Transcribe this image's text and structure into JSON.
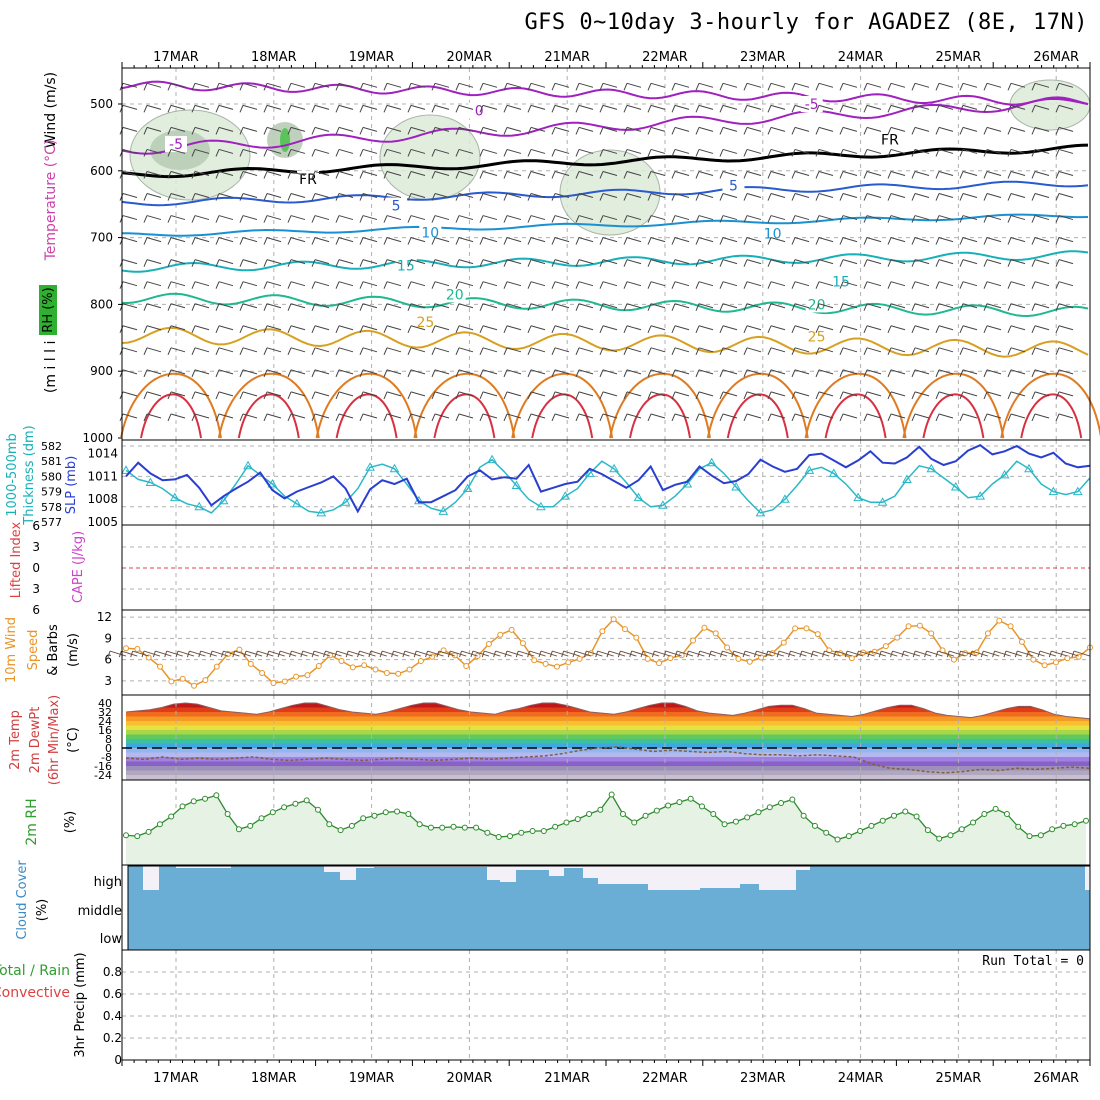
{
  "title": "GFS 0~10day 3-hourly for AGADEZ (8E, 17N)",
  "date_labels": [
    "17MAR",
    "18MAR",
    "19MAR",
    "20MAR",
    "21MAR",
    "22MAR",
    "23MAR",
    "24MAR",
    "25MAR",
    "26MAR"
  ],
  "colors": {
    "cloud": "#6aaed6",
    "cloud_clear": "#f4f0f8",
    "rh_fill": "#e6f2e4",
    "rh_line": "#2e8b2e",
    "wind_speed": "#e8952a",
    "slp": "#2a3fcf",
    "thickness": "#2ab8c8",
    "zero_line": "#e04040",
    "temp_line": "#8b6060"
  },
  "chart_data": [
    {
      "type": "contour",
      "panel": "upper-air",
      "yaxis_labels": [
        "(m i l l i b a r s)",
        "Wind (m/s)",
        "Temperature (°C)",
        "RH (%)"
      ],
      "y_ticks": [
        500,
        600,
        700,
        800,
        900,
        1000
      ],
      "ylim": [
        1000,
        450
      ],
      "isotherm_labels": [
        {
          "value": 0,
          "day": 3.1,
          "p": 510,
          "color": "#a020c0"
        },
        {
          "value": -5,
          "day": 6.5,
          "p": 500,
          "color": "#a020c0"
        },
        {
          "value": -5,
          "day": 0.0,
          "p": 560,
          "color": "#a020c0"
        },
        {
          "value": "FR",
          "day": 1.35,
          "p": 612,
          "color": "#000000"
        },
        {
          "value": "FR",
          "day": 7.3,
          "p": 553,
          "color": "#000000"
        },
        {
          "value": 5,
          "day": 2.25,
          "p": 652,
          "color": "#2a5ad0"
        },
        {
          "value": 5,
          "day": 5.7,
          "p": 622,
          "color": "#2a5ad0"
        },
        {
          "value": 10,
          "day": 2.6,
          "p": 692,
          "color": "#1a90d0"
        },
        {
          "value": 10,
          "day": 6.1,
          "p": 694,
          "color": "#1a90d0"
        },
        {
          "value": 15,
          "day": 2.35,
          "p": 742,
          "color": "#18b0b8"
        },
        {
          "value": 15,
          "day": 6.8,
          "p": 766,
          "color": "#18b0b8"
        },
        {
          "value": 20,
          "day": 2.85,
          "p": 785,
          "color": "#20b890"
        },
        {
          "value": 20,
          "day": 6.55,
          "p": 800,
          "color": "#20b890"
        },
        {
          "value": 25,
          "day": 2.55,
          "p": 826,
          "color": "#d8a020"
        },
        {
          "value": 25,
          "day": 6.55,
          "p": 848,
          "color": "#d8a020"
        }
      ]
    },
    {
      "type": "line",
      "panel": "thickness-slp",
      "yaxis_labels": [
        "1000-500mb",
        "Thickness (dm)",
        "SLP (mb)"
      ],
      "thickness_ticks": [
        577,
        578,
        579,
        580,
        581,
        582
      ],
      "slp_ticks": [
        1005,
        1008,
        1011,
        1014
      ],
      "series": [
        {
          "name": "Thickness",
          "axis": "thickness",
          "values": [
            580.4,
            579.8,
            579.6,
            579.2,
            578.6,
            578.2,
            578.0,
            577.6,
            578.4,
            579.5,
            580.7,
            580.1,
            579.5,
            578.7,
            578.2,
            577.7,
            577.6,
            577.8,
            578.3,
            579.2,
            580.6,
            580.8,
            580.5,
            579.5,
            578.4,
            577.9,
            577.7,
            578.3,
            579.2,
            580.6,
            581.1,
            580.3,
            579.4,
            578.5,
            578.0,
            578.0,
            578.7,
            579.2,
            580.2,
            581.0,
            580.5,
            579.6,
            578.6,
            578.0,
            578.1,
            578.7,
            579.5,
            580.5,
            580.9,
            580.2,
            579.3,
            578.4,
            577.6,
            577.8,
            578.5,
            579.4,
            580.4,
            580.6,
            580.2,
            579.5,
            578.6,
            578.3,
            578.3,
            578.7,
            579.8,
            580.7,
            580.5,
            579.9,
            579.3,
            578.6,
            578.7,
            579.5,
            580.1,
            581.0,
            580.5,
            579.5,
            579.0,
            578.8,
            579.0,
            579.9
          ]
        },
        {
          "name": "SLP",
          "axis": "slp",
          "values": [
            1011.0,
            1012.8,
            1011.4,
            1010.5,
            1010.6,
            1011.2,
            1009.5,
            1007.2,
            1008.4,
            1009.4,
            1010.3,
            1011.5,
            1009.2,
            1008.1,
            1009.0,
            1009.6,
            1010.2,
            1011.0,
            1009.4,
            1006.4,
            1009.3,
            1010.5,
            1010.0,
            1010.7,
            1007.6,
            1007.6,
            1008.4,
            1009.2,
            1011.0,
            1011.8,
            1010.6,
            1010.9,
            1010.7,
            1012.5,
            1009.0,
            1009.5,
            1010.0,
            1010.3,
            1012.0,
            1011.3,
            1010.4,
            1009.5,
            1010.5,
            1012.3,
            1009.2,
            1009.9,
            1010.3,
            1012.3,
            1011.1,
            1010.1,
            1010.4,
            1011.3,
            1013.2,
            1012.3,
            1011.6,
            1012.0,
            1013.8,
            1014.0,
            1013.1,
            1012.2,
            1013.1,
            1014.3,
            1012.8,
            1012.7,
            1013.5,
            1014.9,
            1013.3,
            1012.5,
            1013.0,
            1014.4,
            1015.1,
            1013.9,
            1014.3,
            1015.0,
            1014.0,
            1013.5,
            1014.1,
            1012.7,
            1012.2,
            1012.4
          ]
        }
      ]
    },
    {
      "type": "line",
      "panel": "cape-li",
      "yaxis_labels": [
        "CAPE (J/kg)",
        "Lifted Index"
      ],
      "li_ticks": [
        -6,
        -3,
        0,
        3,
        6
      ],
      "cape_ticks": [],
      "series": [
        {
          "name": "Lifted Index",
          "values": []
        }
      ]
    },
    {
      "type": "line",
      "panel": "wind10m",
      "yaxis_labels": [
        "10m Wind",
        "Speed",
        "& Barbs",
        "(m/s)"
      ],
      "y_ticks": [
        3,
        6,
        9,
        12
      ],
      "ylim": [
        1,
        13
      ],
      "series": [
        {
          "name": "Speed",
          "values": [
            7.6,
            7.5,
            6.3,
            5.0,
            2.9,
            3.3,
            2.3,
            3.1,
            5.0,
            6.8,
            7.4,
            5.4,
            4.1,
            2.7,
            2.9,
            3.6,
            3.8,
            5.1,
            6.6,
            5.8,
            4.9,
            5.2,
            4.6,
            4.1,
            4.0,
            4.6,
            5.8,
            6.4,
            7.3,
            6.6,
            5.1,
            6.5,
            8.2,
            9.5,
            10.2,
            8.3,
            5.9,
            5.4,
            5.0,
            5.6,
            6.1,
            6.9,
            10.0,
            11.7,
            10.3,
            9.1,
            6.1,
            5.5,
            6.2,
            6.6,
            8.7,
            10.5,
            9.7,
            7.7,
            6.1,
            5.7,
            6.3,
            6.9,
            8.4,
            10.4,
            10.4,
            9.6,
            7.3,
            6.9,
            6.2,
            7.0,
            7.1,
            7.9,
            9.1,
            10.7,
            10.8,
            9.7,
            7.3,
            6.0,
            6.9,
            7.0,
            9.7,
            11.5,
            10.7,
            8.5,
            6.0,
            5.2,
            5.6,
            6.2,
            6.4,
            7.7
          ]
        }
      ]
    },
    {
      "type": "area",
      "panel": "temp2m",
      "yaxis_labels": [
        "2m Temp",
        "2m DewPt",
        "(6hr Min/Max)",
        "(°C)"
      ],
      "y_ticks": [
        -24,
        -16,
        -8,
        0,
        8,
        16,
        24,
        32,
        40
      ],
      "series": [
        {
          "name": "2m Temp",
          "values": [
            32,
            33,
            34,
            36,
            39,
            40,
            39,
            36,
            33,
            32,
            31,
            30,
            32,
            35,
            38,
            40,
            40,
            37,
            34,
            32,
            31,
            30,
            32,
            35,
            38,
            40,
            40,
            37,
            34,
            32,
            31,
            30,
            33,
            35,
            38,
            40,
            40,
            38,
            35,
            32,
            31,
            30,
            32,
            35,
            38,
            40,
            40,
            37,
            33,
            31,
            30,
            29,
            31,
            34,
            37,
            38,
            38,
            35,
            31,
            30,
            29,
            28,
            30,
            33,
            36,
            38,
            38,
            35,
            31,
            29,
            28,
            27,
            29,
            32,
            35,
            37,
            37,
            34,
            30,
            28,
            27,
            26
          ]
        },
        {
          "name": "2m DewPt",
          "values": [
            -9,
            -10,
            -8,
            -10,
            -9,
            -10,
            -9,
            -8,
            -10,
            -11,
            -10,
            -9,
            -10,
            -11,
            -10,
            -9,
            -10,
            -11,
            -10,
            -9,
            -10,
            -9,
            -8,
            -7,
            -5,
            -2,
            0,
            1,
            -1,
            -3,
            -2,
            -3,
            -4,
            -3,
            -5,
            -6,
            -6,
            -7,
            -6,
            -7,
            -8,
            -14,
            -18,
            -19,
            -21,
            -22,
            -21,
            -19,
            -20,
            -18,
            -19,
            -18,
            -17,
            -18
          ]
        }
      ]
    },
    {
      "type": "area",
      "panel": "rh2m",
      "yaxis_labels": [
        "2m RH",
        "(%)"
      ],
      "series": [
        {
          "name": "2m RH",
          "values": [
            35,
            34,
            39,
            48,
            57,
            69,
            75,
            78,
            82,
            60,
            42,
            46,
            55,
            62,
            68,
            72,
            76,
            65,
            48,
            41,
            46,
            55,
            58,
            62,
            63,
            60,
            48,
            44,
            44,
            45,
            44,
            44,
            38,
            33,
            34,
            38,
            40,
            40,
            45,
            50,
            54,
            60,
            65,
            83,
            60,
            50,
            58,
            64,
            70,
            74,
            78,
            69,
            60,
            48,
            51,
            56,
            62,
            68,
            73,
            77,
            58,
            46,
            38,
            30,
            34,
            40,
            46,
            52,
            58,
            63,
            57,
            41,
            31,
            35,
            42,
            50,
            60,
            66,
            60,
            45,
            34,
            35,
            42,
            46,
            48,
            52
          ]
        }
      ]
    },
    {
      "type": "bar",
      "panel": "cloud",
      "yaxis_labels": [
        "Cloud Cover",
        "(%)"
      ],
      "levels": [
        "high",
        "middle",
        "low"
      ]
    },
    {
      "type": "bar",
      "panel": "precip",
      "yaxis_labels": [
        "Total / Rain",
        "Convective",
        "3hr Precip (mm)"
      ],
      "y_ticks": [
        0,
        0.2,
        0.4,
        0.6,
        0.8
      ],
      "ylim": [
        0,
        1
      ],
      "run_total_label": "Run Total = 0",
      "values": []
    }
  ]
}
